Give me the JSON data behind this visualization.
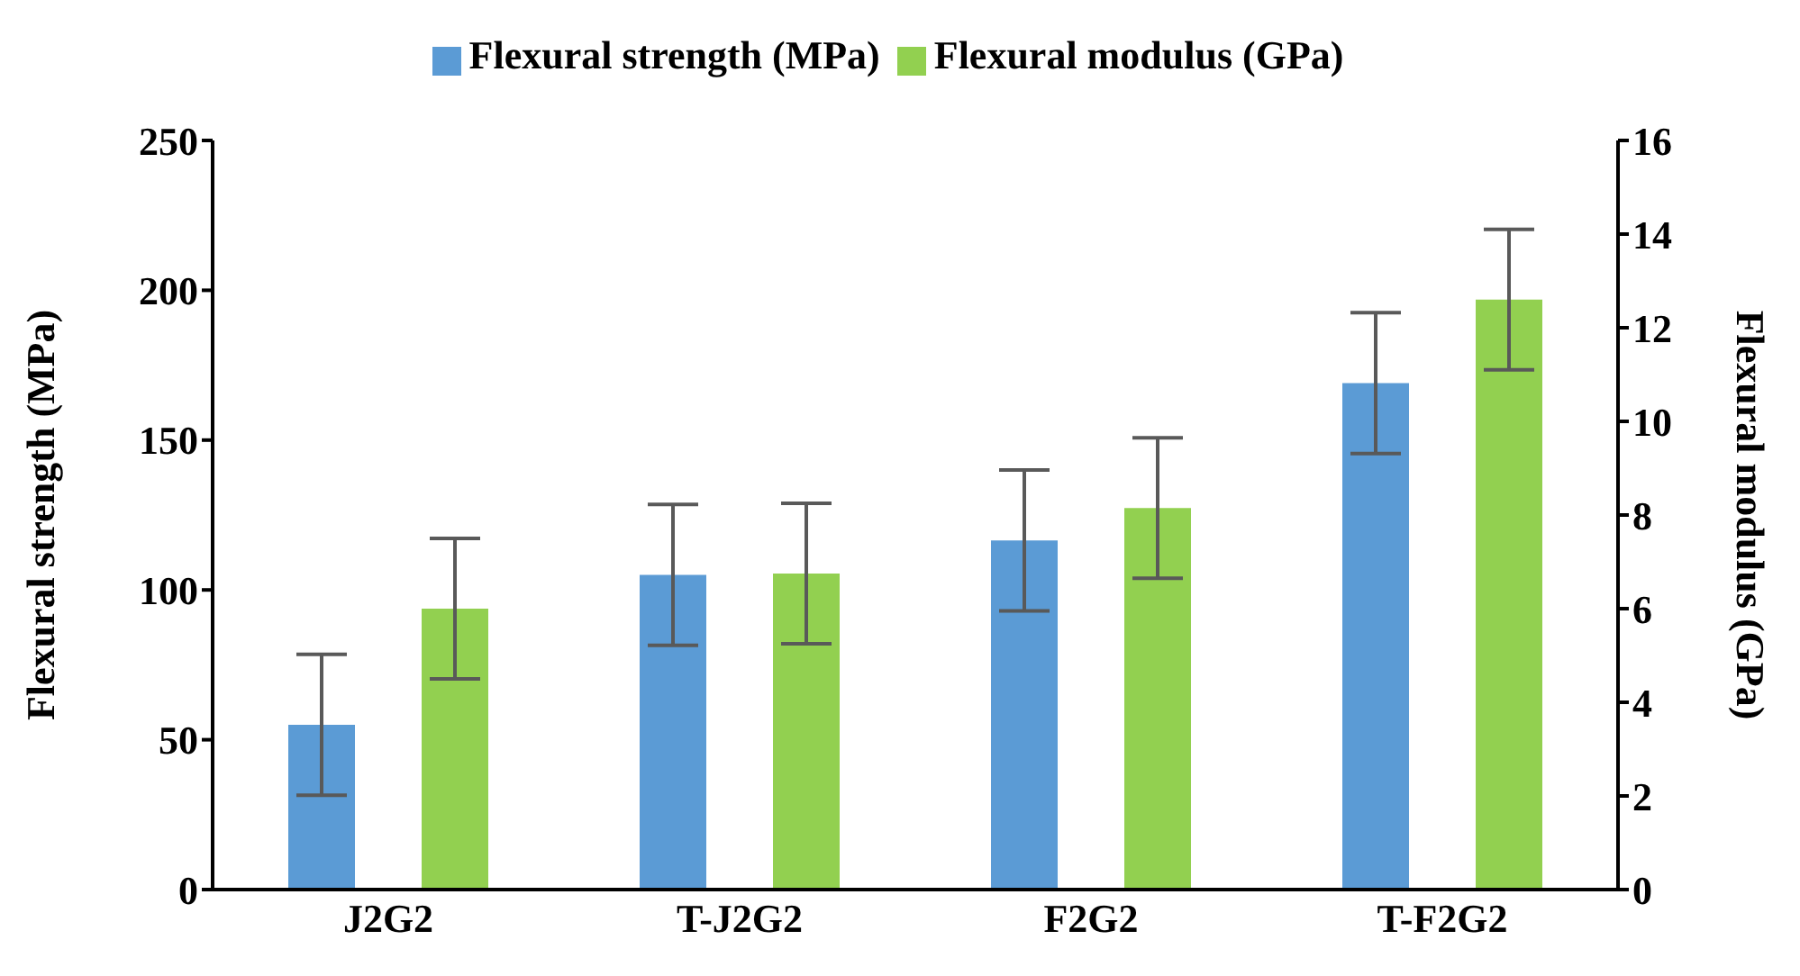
{
  "chart_data": {
    "type": "bar",
    "categories": [
      "J2G2",
      "T-J2G2",
      "F2G2",
      "T-F2G2"
    ],
    "ylabel": "Flexural strength (MPa)",
    "y2label": "Flexural modulus (GPa)",
    "series": [
      {
        "name": "Flexural strength (MPa)",
        "color": "#5b9bd5",
        "values": [
          55,
          105,
          116.5,
          169
        ],
        "errors": [
          23.5,
          23.5,
          23.5,
          23.5
        ]
      },
      {
        "name": "Flexural modulus (GPa)",
        "color": "#92d050",
        "axis": "y2",
        "values": [
          6.0,
          6.75,
          8.15,
          12.6
        ],
        "errors": [
          1.5,
          1.5,
          1.5,
          1.5
        ]
      }
    ],
    "ylim": [
      0,
      250
    ],
    "yticks": [
      0,
      50,
      100,
      150,
      200,
      250
    ],
    "y2lim": [
      0,
      16
    ],
    "y2ticks": [
      0,
      2,
      4,
      6,
      8,
      10,
      12,
      14,
      16
    ],
    "grid": false,
    "legend": "top"
  }
}
